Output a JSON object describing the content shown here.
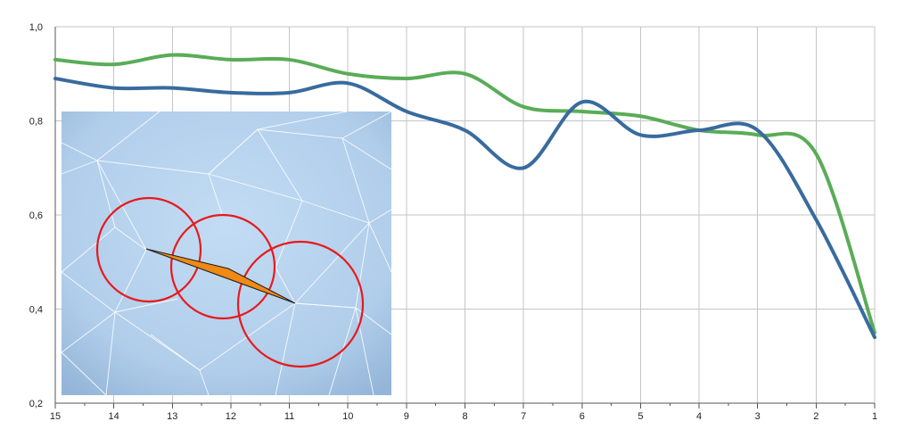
{
  "chart_data": {
    "type": "line",
    "title": "",
    "xlabel": "",
    "ylabel": "",
    "x_reversed": true,
    "xlim": [
      15,
      1
    ],
    "ylim": [
      0.2,
      1.0
    ],
    "x_ticks": [
      "15",
      "14",
      "13",
      "12",
      "11",
      "10",
      "9",
      "8",
      "7",
      "6",
      "5",
      "4",
      "3",
      "2",
      "1"
    ],
    "y_ticks": [
      "0,2",
      "0,4",
      "0,6",
      "0,8",
      "1,0"
    ],
    "grid": true,
    "legend": "none",
    "series": [
      {
        "color": "#5aac57",
        "points": [
          [
            15,
            0.93
          ],
          [
            14,
            0.92
          ],
          [
            13,
            0.94
          ],
          [
            12,
            0.93
          ],
          [
            11,
            0.93
          ],
          [
            10,
            0.9
          ],
          [
            9,
            0.89
          ],
          [
            8,
            0.9
          ],
          [
            7,
            0.83
          ],
          [
            6,
            0.82
          ],
          [
            5,
            0.81
          ],
          [
            4,
            0.78
          ],
          [
            3,
            0.77
          ],
          [
            2,
            0.73
          ],
          [
            1,
            0.35
          ]
        ]
      },
      {
        "color": "#386b9e",
        "points": [
          [
            15,
            0.89
          ],
          [
            14,
            0.87
          ],
          [
            13,
            0.87
          ],
          [
            12,
            0.86
          ],
          [
            11,
            0.86
          ],
          [
            10,
            0.88
          ],
          [
            9,
            0.82
          ],
          [
            8,
            0.78
          ],
          [
            7,
            0.7
          ],
          [
            6,
            0.84
          ],
          [
            5,
            0.77
          ],
          [
            4,
            0.78
          ],
          [
            3,
            0.78
          ],
          [
            2,
            0.59
          ],
          [
            1,
            0.34
          ]
        ]
      }
    ]
  },
  "inset": {
    "description_icon": "mesh-triangulation-image",
    "background": "#b3d0ec",
    "mesh_color": "#ffffff",
    "circle_color": "#e8191c",
    "sliver_color": "#f08a14"
  }
}
